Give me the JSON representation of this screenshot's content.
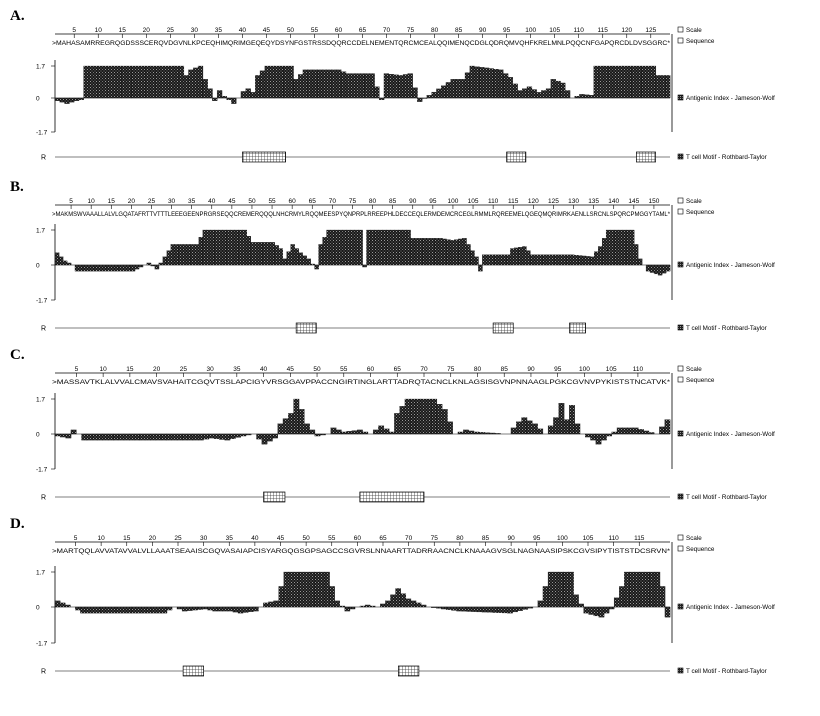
{
  "chart_data": [
    {
      "type": "area",
      "panel_label": "A.",
      "sequence": ">MAHASAMRREGRQGDSSSCERQVDGVNLKPCEQHIMQRIMGEQEQYDSYNFGSTRSSDQQRCCDELNEMENTQRCMCEALQQIMENQCDGLQDRQMVQHFKRELMNLPQQCNFGAPQRCDLDVSGGRC*",
      "x_ticks": [
        5,
        10,
        15,
        20,
        25,
        30,
        35,
        40,
        45,
        50,
        55,
        60,
        65,
        70,
        75,
        80,
        85,
        90,
        95,
        100,
        105,
        110,
        115,
        120,
        125
      ],
      "xlim": [
        1,
        129
      ],
      "ylim": [
        -1.7,
        1.7
      ],
      "y_ticks": [
        "1.7",
        "0",
        "-1.7"
      ],
      "legend": {
        "scale": "Scale",
        "sequence": "Sequence",
        "antigenic": "Antigenic Index - Jameson-Wolf",
        "tcell": "T cell Motif  - Rothbard-Taylor"
      },
      "r_label": "R",
      "series_points": [
        [
          1,
          -0.15
        ],
        [
          3,
          -0.3
        ],
        [
          5,
          -0.15
        ],
        [
          6,
          -0.1
        ],
        [
          7,
          1.7
        ],
        [
          27,
          1.7
        ],
        [
          28,
          1.2
        ],
        [
          29,
          1.5
        ],
        [
          31,
          1.7
        ],
        [
          32,
          1.0
        ],
        [
          33,
          0.5
        ],
        [
          34,
          -0.15
        ],
        [
          35,
          0.4
        ],
        [
          36,
          0.1
        ],
        [
          38,
          -0.3
        ],
        [
          40,
          0.35
        ],
        [
          41,
          0.5
        ],
        [
          42,
          0.3
        ],
        [
          43,
          1.2
        ],
        [
          45,
          1.7
        ],
        [
          50,
          1.7
        ],
        [
          51,
          1.0
        ],
        [
          53,
          1.5
        ],
        [
          60,
          1.5
        ],
        [
          62,
          1.3
        ],
        [
          65,
          1.3
        ],
        [
          67,
          1.3
        ],
        [
          69,
          -0.1
        ],
        [
          70,
          1.3
        ],
        [
          73,
          1.2
        ],
        [
          75,
          1.3
        ],
        [
          77,
          -0.2
        ],
        [
          84,
          1.0
        ],
        [
          86,
          1.0
        ],
        [
          88,
          1.7
        ],
        [
          94,
          1.5
        ],
        [
          96,
          1.1
        ],
        [
          98,
          0.4
        ],
        [
          100,
          0.6
        ],
        [
          102,
          0.3
        ],
        [
          104,
          0.5
        ],
        [
          105,
          1.0
        ],
        [
          107,
          0.8
        ],
        [
          109,
          0.0
        ],
        [
          111,
          0.2
        ],
        [
          113,
          0.15
        ],
        [
          114,
          1.7
        ],
        [
          126,
          1.7
        ],
        [
          127,
          1.2
        ],
        [
          129,
          1.2
        ]
      ],
      "tcell_motifs": [
        [
          40,
          49
        ],
        [
          95,
          99
        ],
        [
          122,
          126
        ]
      ]
    },
    {
      "type": "area",
      "panel_label": "B.",
      "sequence": ">MAKMSWVAAALLALVLGQATAFRTTVTTTLEEEGEENPRGRSEQQCREMERQQQLNHCRMYLRQQMEESPYQNPRPLRREEPHLDECCEQLERMDEMCRCEGLRMMLRQREEMELQGEQMQRIMRKAENLLSRCNLSPQRCPMGGYTAML*",
      "x_ticks": [
        5,
        10,
        15,
        20,
        25,
        30,
        35,
        40,
        45,
        50,
        55,
        60,
        65,
        70,
        75,
        80,
        85,
        90,
        95,
        100,
        105,
        110,
        115,
        120,
        125,
        130,
        135,
        140,
        145,
        150
      ],
      "xlim": [
        1,
        154
      ],
      "ylim": [
        -1.7,
        1.7
      ],
      "y_ticks": [
        "1.7",
        "0",
        "-1.7"
      ],
      "legend": {
        "scale": "Scale",
        "sequence": "Sequence",
        "antigenic": "Antigenic Index - Jameson-Wolf",
        "tcell": "T cell Motif  - Rothbard-Taylor"
      },
      "r_label": "R",
      "series_points": [
        [
          1,
          0.6
        ],
        [
          3,
          0.2
        ],
        [
          5,
          0.0
        ],
        [
          6,
          -0.3
        ],
        [
          20,
          -0.3
        ],
        [
          22,
          -0.1
        ],
        [
          24,
          0.1
        ],
        [
          26,
          -0.2
        ],
        [
          28,
          0.4
        ],
        [
          30,
          1.0
        ],
        [
          36,
          1.0
        ],
        [
          38,
          1.7
        ],
        [
          48,
          1.7
        ],
        [
          50,
          1.1
        ],
        [
          55,
          1.1
        ],
        [
          57,
          0.8
        ],
        [
          58,
          0.3
        ],
        [
          60,
          1.0
        ],
        [
          62,
          0.6
        ],
        [
          64,
          0.3
        ],
        [
          66,
          -0.2
        ],
        [
          67,
          1.0
        ],
        [
          69,
          1.7
        ],
        [
          77,
          1.7
        ],
        [
          78,
          -0.1
        ],
        [
          79,
          1.7
        ],
        [
          89,
          1.7
        ],
        [
          90,
          1.3
        ],
        [
          97,
          1.3
        ],
        [
          100,
          1.2
        ],
        [
          103,
          1.3
        ],
        [
          106,
          0.4
        ],
        [
          107,
          -0.3
        ],
        [
          108,
          0.5
        ],
        [
          114,
          0.5
        ],
        [
          115,
          0.8
        ],
        [
          118,
          0.9
        ],
        [
          120,
          0.5
        ],
        [
          130,
          0.5
        ],
        [
          135,
          0.4
        ],
        [
          137,
          0.9
        ],
        [
          139,
          1.7
        ],
        [
          145,
          1.7
        ],
        [
          147,
          0.3
        ],
        [
          149,
          -0.3
        ],
        [
          152,
          -0.5
        ],
        [
          154,
          -0.3
        ]
      ],
      "tcell_motifs": [
        [
          61,
          66
        ],
        [
          110,
          115
        ],
        [
          129,
          133
        ]
      ]
    },
    {
      "type": "area",
      "panel_label": "C.",
      "sequence": ">MASSAVTKLALVVALCMAVSVAHAITCGQVTSSLAPCIGYVRSGGAVPPACCNGIRTINGLARTTADRQTACNCLKNLAGSISGVNPNNAAGLPGKCGVNVPYKISTSTNCATVK*",
      "x_ticks": [
        5,
        10,
        15,
        20,
        25,
        30,
        35,
        40,
        45,
        50,
        55,
        60,
        65,
        70,
        75,
        80,
        85,
        90,
        95,
        100,
        105,
        110
      ],
      "xlim": [
        1,
        116
      ],
      "ylim": [
        -1.7,
        1.7
      ],
      "y_ticks": [
        "1.7",
        "0",
        "-1.7"
      ],
      "legend": {
        "scale": "Scale",
        "sequence": "Sequence",
        "antigenic": "Antigenic Index - Jameson-Wolf",
        "tcell": "T cell Motif  - Rothbard-Taylor"
      },
      "r_label": "R",
      "series_points": [
        [
          1,
          -0.1
        ],
        [
          3,
          -0.2
        ],
        [
          4,
          0.2
        ],
        [
          5,
          0.0
        ],
        [
          6,
          -0.3
        ],
        [
          28,
          -0.3
        ],
        [
          30,
          -0.2
        ],
        [
          33,
          -0.3
        ],
        [
          36,
          -0.1
        ],
        [
          38,
          0.0
        ],
        [
          40,
          -0.5
        ],
        [
          42,
          -0.2
        ],
        [
          43,
          0.5
        ],
        [
          45,
          1.0
        ],
        [
          46,
          1.7
        ],
        [
          47,
          1.2
        ],
        [
          48,
          0.5
        ],
        [
          50,
          -0.1
        ],
        [
          52,
          0.0
        ],
        [
          53,
          0.3
        ],
        [
          55,
          0.1
        ],
        [
          58,
          0.2
        ],
        [
          60,
          0.0
        ],
        [
          62,
          0.4
        ],
        [
          64,
          0.1
        ],
        [
          65,
          1.0
        ],
        [
          67,
          1.7
        ],
        [
          72,
          1.7
        ],
        [
          74,
          1.2
        ],
        [
          76,
          0.0
        ],
        [
          78,
          0.2
        ],
        [
          80,
          0.1
        ],
        [
          86,
          0.0
        ],
        [
          88,
          0.6
        ],
        [
          89,
          0.8
        ],
        [
          91,
          0.5
        ],
        [
          93,
          0.0
        ],
        [
          95,
          0.8
        ],
        [
          96,
          1.5
        ],
        [
          97,
          0.7
        ],
        [
          98,
          1.4
        ],
        [
          99,
          0.5
        ],
        [
          100,
          0.0
        ],
        [
          102,
          -0.3
        ],
        [
          103,
          -0.5
        ],
        [
          105,
          -0.1
        ],
        [
          107,
          0.3
        ],
        [
          110,
          0.3
        ],
        [
          114,
          0.0
        ],
        [
          116,
          0.7
        ]
      ],
      "tcell_motifs": [
        [
          40,
          44
        ],
        [
          58,
          70
        ]
      ]
    },
    {
      "type": "area",
      "panel_label": "D.",
      "sequence": ">MARTQQLAVVATAVVALVLLAAATSEAAISCGQVASAIAPCISYARGQGSGPSAGCCSGVRSLNNAARTTADRRAACNCLKNAAAGVSGLNAGNAASIPSKCGVSIPYTISTSTDCSRVN*",
      "x_ticks": [
        5,
        10,
        15,
        20,
        25,
        30,
        35,
        40,
        45,
        50,
        55,
        60,
        65,
        70,
        75,
        80,
        85,
        90,
        95,
        100,
        105,
        110,
        115
      ],
      "xlim": [
        1,
        121
      ],
      "ylim": [
        -1.7,
        1.7
      ],
      "y_ticks": [
        "1.7",
        "0",
        "-1.7"
      ],
      "legend": {
        "scale": "Scale",
        "sequence": "Sequence",
        "antigenic": "Antigenic Index - Jameson-Wolf",
        "tcell": "T cell Motif  - Rothbard-Taylor"
      },
      "r_label": "R",
      "series_points": [
        [
          1,
          0.3
        ],
        [
          4,
          0.0
        ],
        [
          6,
          -0.3
        ],
        [
          22,
          -0.3
        ],
        [
          24,
          0.0
        ],
        [
          26,
          -0.2
        ],
        [
          30,
          -0.1
        ],
        [
          32,
          -0.2
        ],
        [
          35,
          -0.2
        ],
        [
          37,
          -0.3
        ],
        [
          40,
          -0.2
        ],
        [
          42,
          0.2
        ],
        [
          44,
          0.3
        ],
        [
          46,
          1.7
        ],
        [
          54,
          1.7
        ],
        [
          56,
          0.3
        ],
        [
          58,
          -0.2
        ],
        [
          60,
          0.0
        ],
        [
          62,
          0.1
        ],
        [
          64,
          0.0
        ],
        [
          66,
          0.3
        ],
        [
          68,
          0.9
        ],
        [
          70,
          0.4
        ],
        [
          72,
          0.2
        ],
        [
          74,
          0.0
        ],
        [
          80,
          -0.2
        ],
        [
          90,
          -0.3
        ],
        [
          95,
          0.0
        ],
        [
          96,
          0.3
        ],
        [
          97,
          1.0
        ],
        [
          98,
          1.7
        ],
        [
          102,
          1.7
        ],
        [
          103,
          0.6
        ],
        [
          105,
          -0.3
        ],
        [
          108,
          -0.5
        ],
        [
          110,
          -0.1
        ],
        [
          112,
          1.0
        ],
        [
          113,
          1.7
        ],
        [
          119,
          1.7
        ],
        [
          120,
          1.0
        ],
        [
          121,
          -0.5
        ]
      ],
      "tcell_motifs": [
        [
          26,
          30
        ],
        [
          68,
          72
        ]
      ]
    }
  ]
}
